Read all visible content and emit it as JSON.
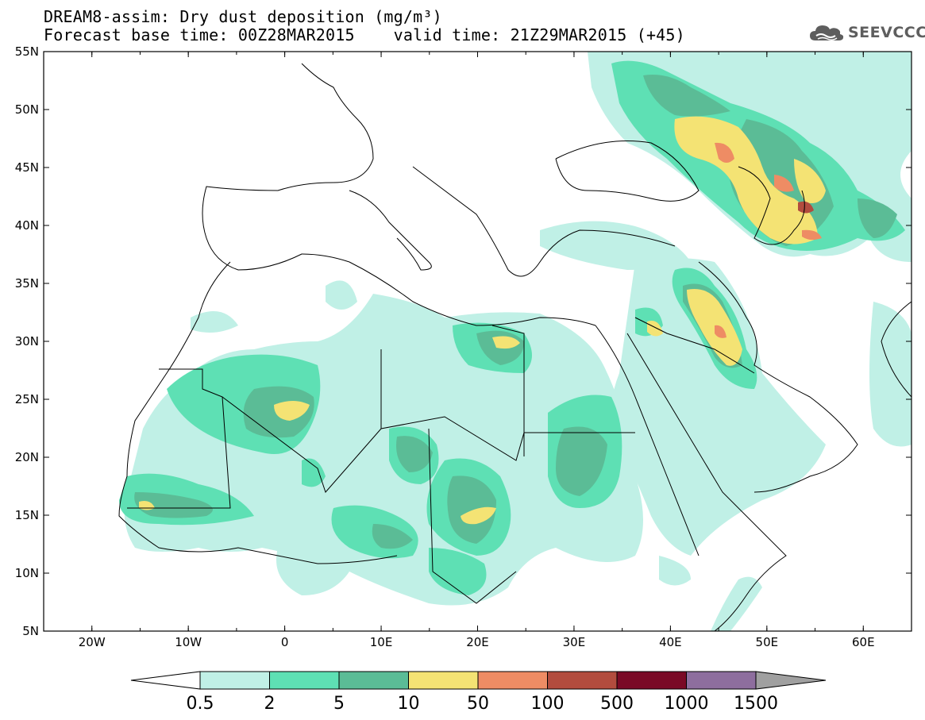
{
  "title": {
    "line1": "DREAM8-assim: Dry dust deposition (mg/m³)",
    "line2": "Forecast base time: 00Z28MAR2015    valid time: 21Z29MAR2015 (+45)"
  },
  "logo": {
    "text": "SEEVCCC",
    "icon": "cloud-icon"
  },
  "map": {
    "lat_ticks": [
      "55N",
      "50N",
      "45N",
      "40N",
      "35N",
      "30N",
      "25N",
      "20N",
      "15N",
      "10N",
      "5N"
    ],
    "lon_ticks": [
      "20W",
      "10W",
      "0",
      "10E",
      "20E",
      "30E",
      "40E",
      "50E",
      "60E"
    ],
    "extent": {
      "lon": [
        -25,
        65
      ],
      "lat": [
        5,
        55
      ]
    }
  },
  "colorbar": {
    "colors": [
      "#c0f0e6",
      "#5ee0b4",
      "#5bbc96",
      "#f4e374",
      "#ee8c64",
      "#b24c3e",
      "#7a0a26",
      "#8e6e9e"
    ],
    "under_color": "#ffffff",
    "over_color": "#a0a0a0",
    "labels": [
      "0.5",
      "2",
      "5",
      "10",
      "50",
      "100",
      "500",
      "1000",
      "1500"
    ]
  }
}
